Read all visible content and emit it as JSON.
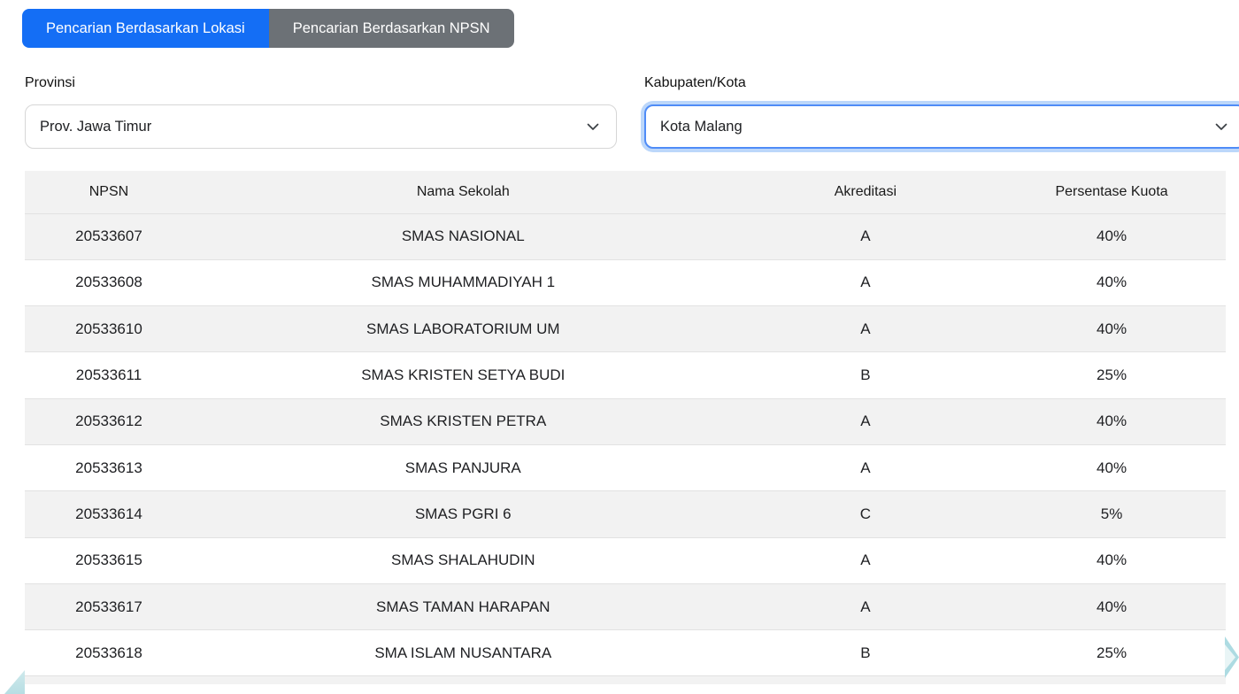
{
  "tabs": [
    {
      "label": "Pencarian Berdasarkan Lokasi",
      "active": true
    },
    {
      "label": "Pencarian Berdasarkan NPSN",
      "active": false
    }
  ],
  "filters": {
    "provinsi": {
      "label": "Provinsi",
      "value": "Prov. Jawa Timur"
    },
    "kabupaten": {
      "label": "Kabupaten/Kota",
      "value": "Kota Malang",
      "focused": true
    }
  },
  "table": {
    "columns": [
      "NPSN",
      "Nama Sekolah",
      "Akreditasi",
      "Persentase Kuota"
    ],
    "rows": [
      [
        "20533607",
        "SMAS NASIONAL",
        "A",
        "40%"
      ],
      [
        "20533608",
        "SMAS MUHAMMADIYAH 1",
        "A",
        "40%"
      ],
      [
        "20533610",
        "SMAS LABORATORIUM UM",
        "A",
        "40%"
      ],
      [
        "20533611",
        "SMAS KRISTEN SETYA BUDI",
        "B",
        "25%"
      ],
      [
        "20533612",
        "SMAS KRISTEN PETRA",
        "A",
        "40%"
      ],
      [
        "20533613",
        "SMAS PANJURA",
        "A",
        "40%"
      ],
      [
        "20533614",
        "SMAS PGRI 6",
        "C",
        "5%"
      ],
      [
        "20533615",
        "SMAS SHALAHUDIN",
        "A",
        "40%"
      ],
      [
        "20533617",
        "SMAS TAMAN HARAPAN",
        "A",
        "40%"
      ],
      [
        "20533618",
        "SMA ISLAM NUSANTARA",
        "B",
        "25%"
      ]
    ],
    "cell_names": [
      "cell-npsn",
      "cell-nama-sekolah",
      "cell-akreditasi",
      "cell-persentase-kuota"
    ]
  },
  "colors": {
    "primary_blue": "#146ef5",
    "inactive_tab_gray": "#6c7176",
    "focus_ring_blue": "#4f8cf7",
    "focus_halo_blue": "#bcd7fa",
    "stripe_gray": "#f2f2f2",
    "row_border_gray": "#e2e2e2",
    "decoration_teal": "#b7dee3"
  }
}
